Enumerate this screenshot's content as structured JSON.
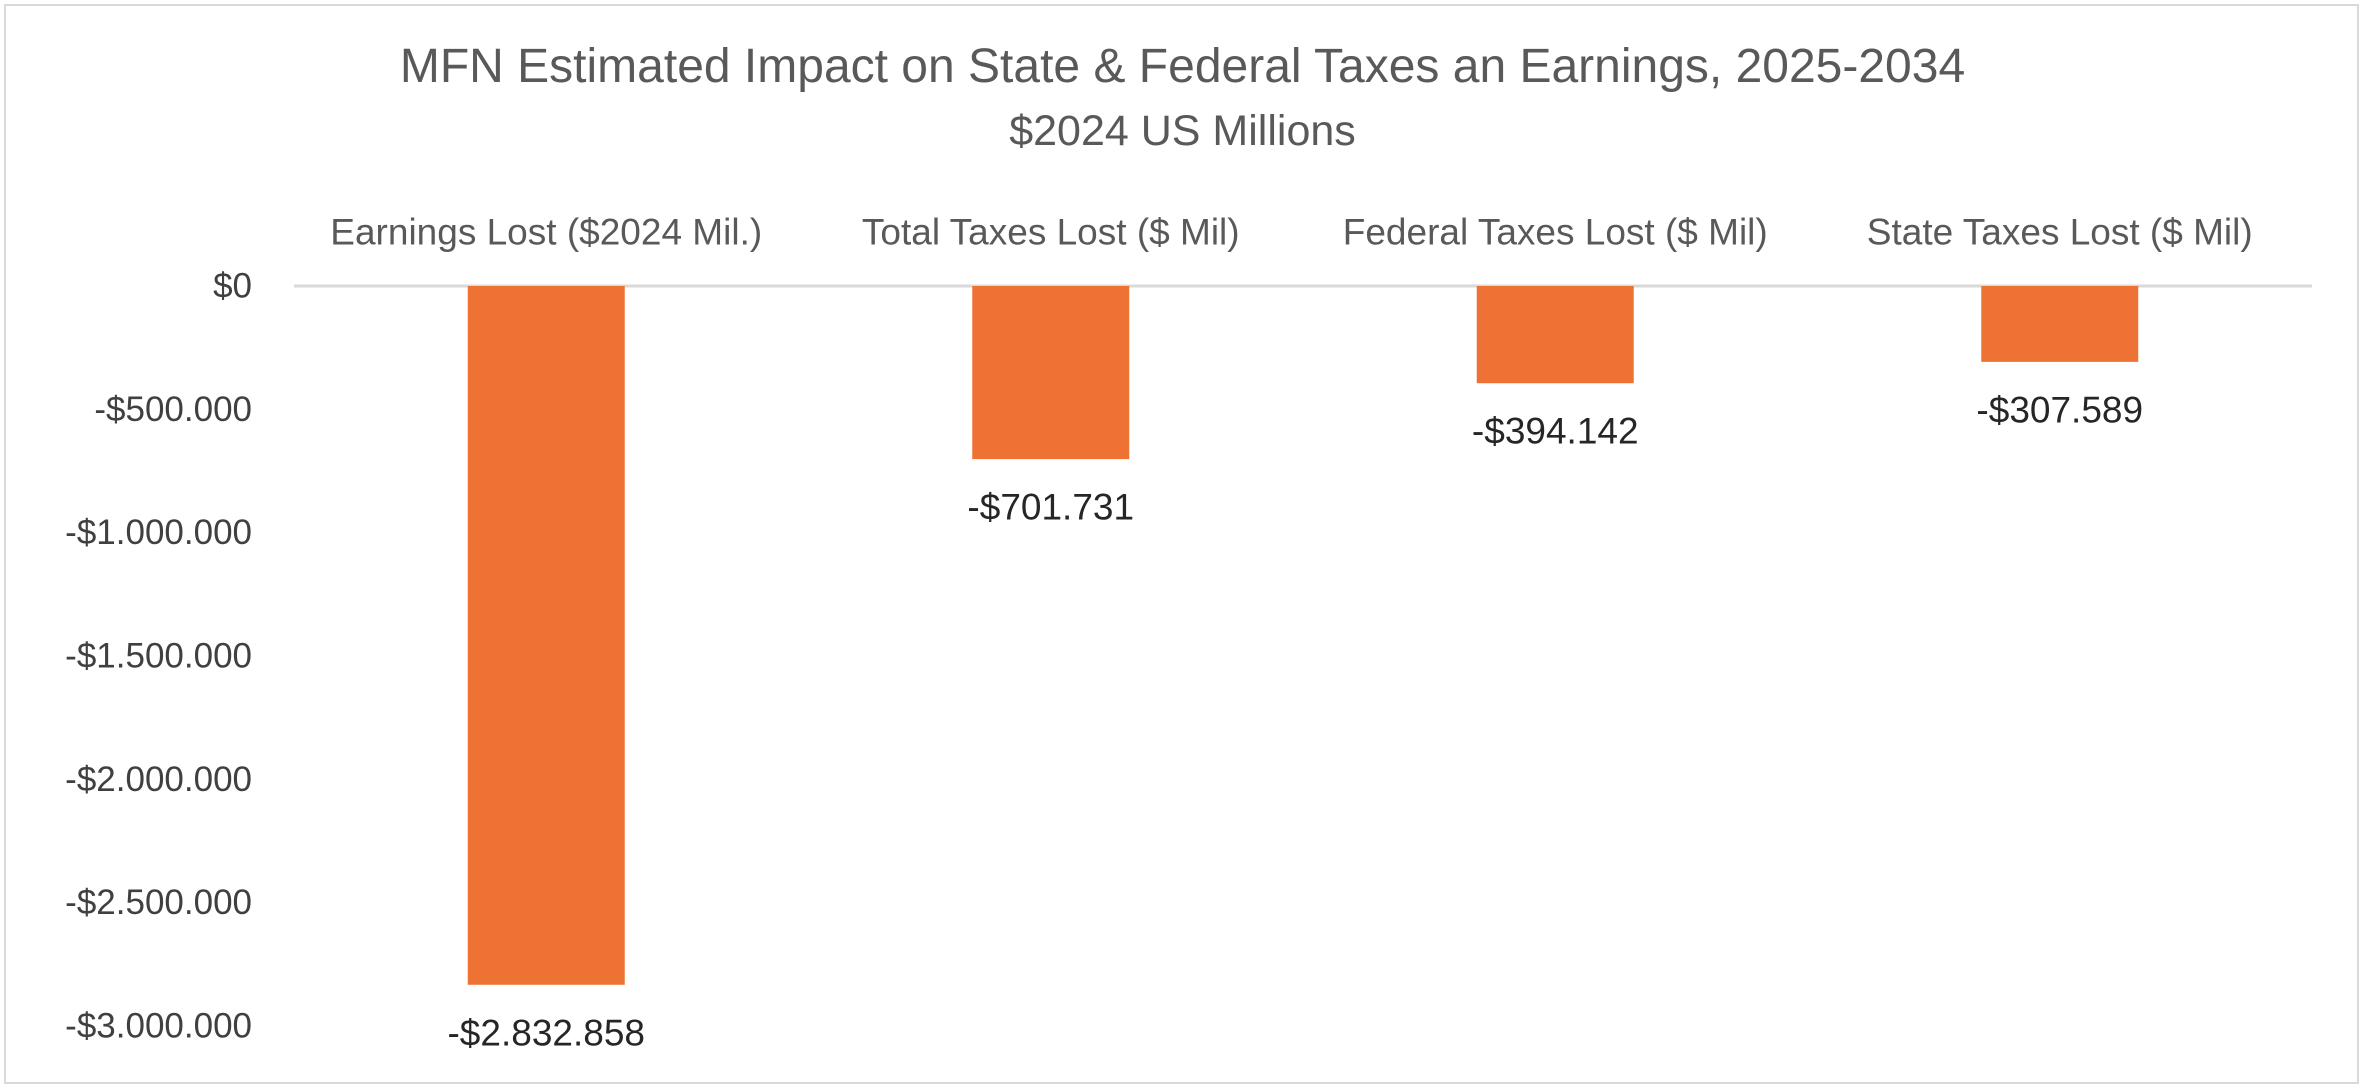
{
  "chart_data": {
    "type": "bar",
    "title": "MFN Estimated Impact on State & Federal Taxes an Earnings, 2025-2034",
    "subtitle": "$2024 US Millions",
    "categories": [
      "Earnings Lost ($2024 Mil.)",
      "Total Taxes Lost ($ Mil)",
      "Federal Taxes Lost ($ Mil)",
      "State Taxes Lost ($ Mil)"
    ],
    "values": [
      -2832858,
      -701731,
      -394142,
      -307589
    ],
    "data_labels": [
      "-$2.832.858",
      "-$701.731",
      "-$394.142",
      "-$307.589"
    ],
    "ylim": [
      -3000000,
      0
    ],
    "yticks": [
      0,
      -500000,
      -1000000,
      -1500000,
      -2000000,
      -2500000,
      -3000000
    ],
    "ytick_labels": [
      "$0",
      "-$500.000",
      "-$1.000.000",
      "-$1.500.000",
      "-$2.000.000",
      "-$2.500.000",
      "-$3.000.000"
    ],
    "category_axis_position": "top",
    "grid": false,
    "legend": "none",
    "bar_color": "#ED7233",
    "axis_line_color": "#D9D9D9"
  }
}
